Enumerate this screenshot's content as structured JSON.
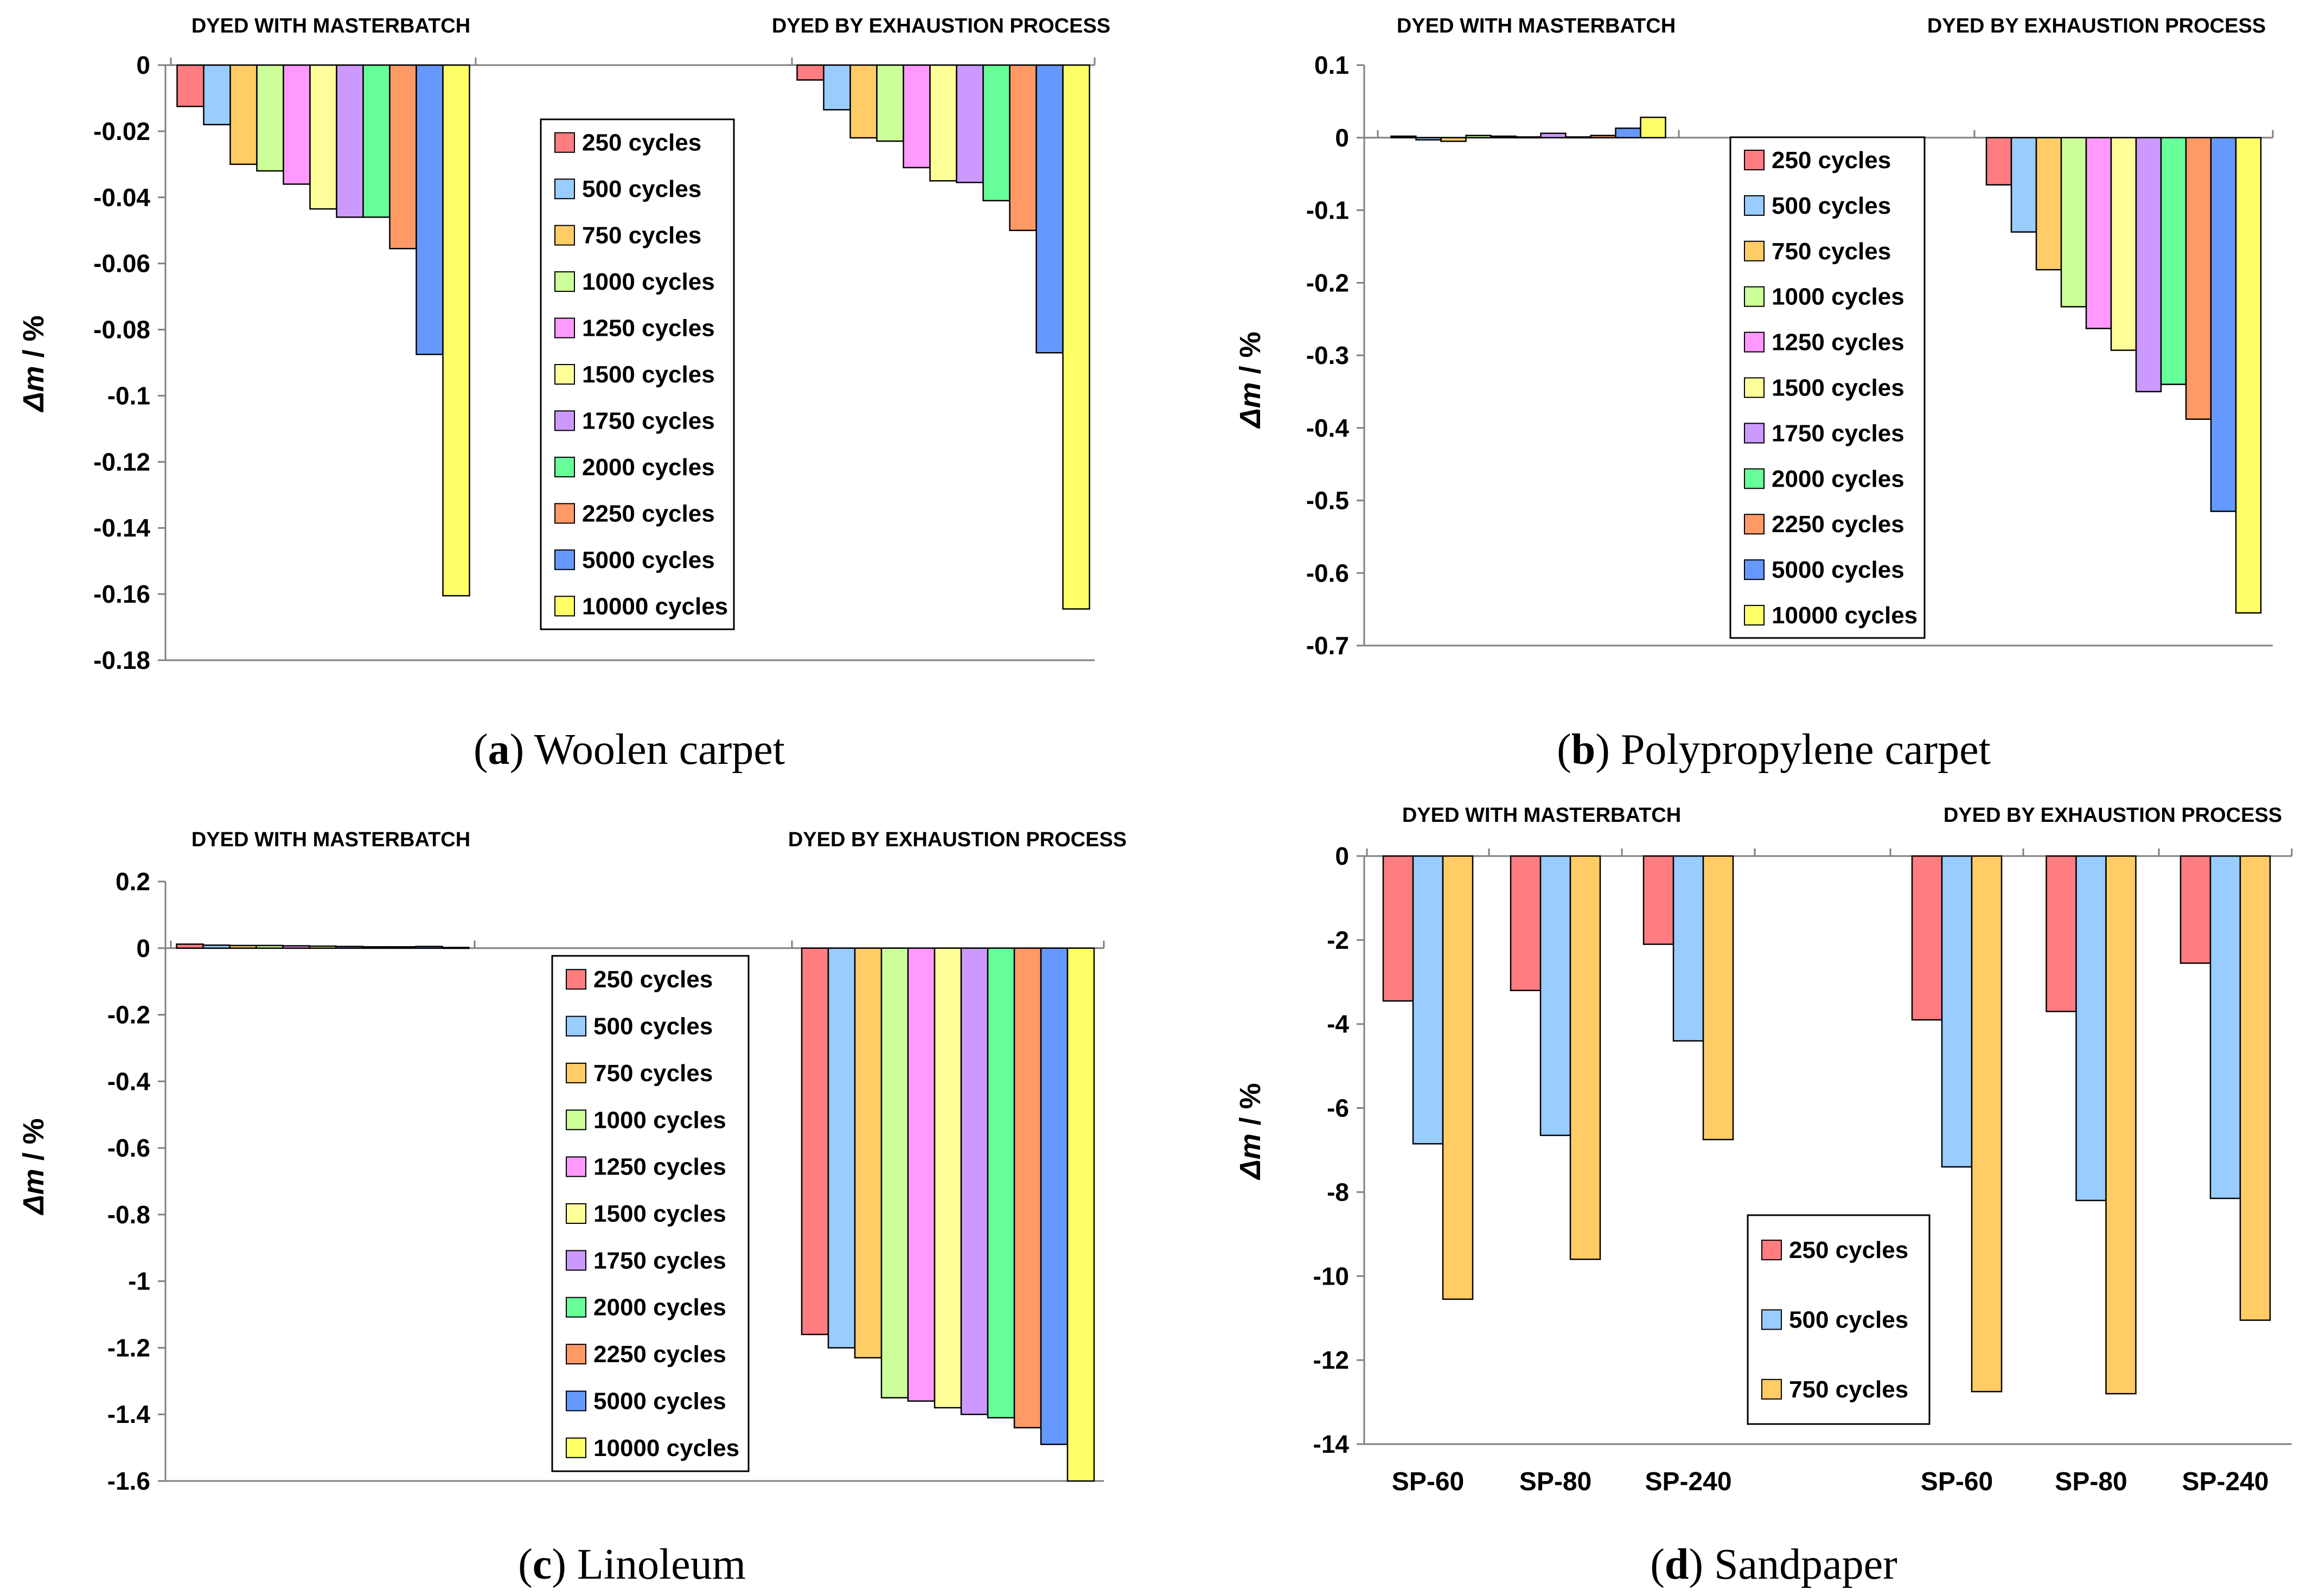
{
  "colors": {
    "series": [
      "#FF7C80",
      "#99CCFF",
      "#FFCC66",
      "#CCFF99",
      "#FF99FF",
      "#FFFF99",
      "#CC99FF",
      "#66FF99",
      "#FF9966",
      "#6699FF",
      "#FFFF66"
    ],
    "axis": "#808080",
    "bar_stroke": "#000000"
  },
  "chart_data": [
    {
      "id": "a",
      "type": "bar",
      "caption_letter": "a",
      "caption_rest": " Woolen carpet",
      "ylabel_italic": "Δm",
      "ylabel_rest": " / %",
      "ylim": [
        -0.18,
        0
      ],
      "yticks": [
        "0",
        "-0.02",
        "-0.04",
        "-0.06",
        "-0.08",
        "-0.1",
        "-0.12",
        "-0.14",
        "-0.16",
        "-0.18"
      ],
      "ytick_values": [
        0,
        -0.02,
        -0.04,
        -0.06,
        -0.08,
        -0.1,
        -0.12,
        -0.14,
        -0.16,
        -0.18
      ],
      "groups": [
        "DYED WITH MASTERBATCH",
        "DYED BY EXHAUSTION PROCESS"
      ],
      "series": [
        {
          "name": "250 cycles",
          "values": [
            -0.0125,
            -0.0045
          ]
        },
        {
          "name": "500 cycles",
          "values": [
            -0.018,
            -0.0135
          ]
        },
        {
          "name": "750 cycles",
          "values": [
            -0.03,
            -0.022
          ]
        },
        {
          "name": "1000 cycles",
          "values": [
            -0.032,
            -0.023
          ]
        },
        {
          "name": "1250 cycles",
          "values": [
            -0.036,
            -0.031
          ]
        },
        {
          "name": "1500 cycles",
          "values": [
            -0.0435,
            -0.035
          ]
        },
        {
          "name": "1750 cycles",
          "values": [
            -0.046,
            -0.0355
          ]
        },
        {
          "name": "2000 cycles",
          "values": [
            -0.046,
            -0.041
          ]
        },
        {
          "name": "2250 cycles",
          "values": [
            -0.0555,
            -0.05
          ]
        },
        {
          "name": "5000 cycles",
          "values": [
            -0.0875,
            -0.087
          ]
        },
        {
          "name": "10000 cycles",
          "values": [
            -0.1605,
            -0.1645
          ]
        }
      ]
    },
    {
      "id": "b",
      "type": "bar",
      "caption_letter": "b",
      "caption_rest": " Polypropylene carpet",
      "ylabel_italic": "Δm",
      "ylabel_rest": " / %",
      "ylim": [
        -0.7,
        0.1
      ],
      "yticks": [
        "0.1",
        "0",
        "-0.1",
        "-0.2",
        "-0.3",
        "-0.4",
        "-0.5",
        "-0.6",
        "-0.7"
      ],
      "ytick_values": [
        0.1,
        0,
        -0.1,
        -0.2,
        -0.3,
        -0.4,
        -0.5,
        -0.6,
        -0.7
      ],
      "groups": [
        "DYED WITH MASTERBATCH",
        "DYED BY EXHAUSTION PROCESS"
      ],
      "series": [
        {
          "name": "250 cycles",
          "values": [
            0.002,
            -0.065
          ]
        },
        {
          "name": "500 cycles",
          "values": [
            -0.003,
            -0.13
          ]
        },
        {
          "name": "750 cycles",
          "values": [
            -0.005,
            -0.182
          ]
        },
        {
          "name": "1000 cycles",
          "values": [
            0.003,
            -0.233
          ]
        },
        {
          "name": "1250 cycles",
          "values": [
            0.002,
            -0.263
          ]
        },
        {
          "name": "1500 cycles",
          "values": [
            0.001,
            -0.293
          ]
        },
        {
          "name": "1750 cycles",
          "values": [
            0.006,
            -0.35
          ]
        },
        {
          "name": "2000 cycles",
          "values": [
            0.001,
            -0.34
          ]
        },
        {
          "name": "2250 cycles",
          "values": [
            0.003,
            -0.388
          ]
        },
        {
          "name": "5000 cycles",
          "values": [
            0.013,
            -0.515
          ]
        },
        {
          "name": "10000 cycles",
          "values": [
            0.028,
            -0.655
          ]
        }
      ]
    },
    {
      "id": "c",
      "type": "bar",
      "caption_letter": "c",
      "caption_rest": " Linoleum",
      "ylabel_italic": "Δm",
      "ylabel_rest": " / %",
      "ylim": [
        -1.6,
        0.2
      ],
      "yticks": [
        "0.2",
        "0",
        "-0.2",
        "-0.4",
        "-0.6",
        "-0.8",
        "-1",
        "-1.2",
        "-1.4",
        "-1.6"
      ],
      "ytick_values": [
        0.2,
        0,
        -0.2,
        -0.4,
        -0.6,
        -0.8,
        -1,
        -1.2,
        -1.4,
        -1.6
      ],
      "groups": [
        "DYED WITH MASTERBATCH",
        "DYED BY EXHAUSTION PROCESS"
      ],
      "series": [
        {
          "name": "250 cycles",
          "values": [
            0.012,
            -1.16
          ]
        },
        {
          "name": "500 cycles",
          "values": [
            0.009,
            -1.2
          ]
        },
        {
          "name": "750 cycles",
          "values": [
            0.008,
            -1.23
          ]
        },
        {
          "name": "1000 cycles",
          "values": [
            0.008,
            -1.35
          ]
        },
        {
          "name": "1250 cycles",
          "values": [
            0.007,
            -1.36
          ]
        },
        {
          "name": "1500 cycles",
          "values": [
            0.006,
            -1.38
          ]
        },
        {
          "name": "1750 cycles",
          "values": [
            0.005,
            -1.4
          ]
        },
        {
          "name": "2000 cycles",
          "values": [
            0.004,
            -1.41
          ]
        },
        {
          "name": "2250 cycles",
          "values": [
            0.004,
            -1.44
          ]
        },
        {
          "name": "5000 cycles",
          "values": [
            0.005,
            -1.49
          ]
        },
        {
          "name": "10000 cycles",
          "values": [
            0.002,
            -1.6
          ]
        }
      ]
    },
    {
      "id": "d",
      "type": "bar",
      "caption_letter": "d",
      "caption_rest": " Sandpaper",
      "ylabel_italic": "Δm",
      "ylabel_rest": " / %",
      "ylim": [
        -14,
        0
      ],
      "yticks": [
        "0",
        "-2",
        "-4",
        "-6",
        "-8",
        "-10",
        "-12",
        "-14"
      ],
      "ytick_values": [
        0,
        -2,
        -4,
        -6,
        -8,
        -10,
        -12,
        -14
      ],
      "groups": [
        "DYED WITH MASTERBATCH",
        "DYED BY EXHAUSTION PROCESS"
      ],
      "categories": [
        "SP-60",
        "SP-80",
        "SP-240",
        "",
        "SP-60",
        "SP-80",
        "SP-240"
      ],
      "series": [
        {
          "name": "250 cycles",
          "values": [
            -3.45,
            -3.2,
            -2.1,
            null,
            -3.9,
            -3.7,
            -2.55
          ]
        },
        {
          "name": "500 cycles",
          "values": [
            -6.85,
            -6.65,
            -4.4,
            null,
            -7.4,
            -8.2,
            -8.15
          ]
        },
        {
          "name": "750 cycles",
          "values": [
            -10.55,
            -9.6,
            -6.75,
            null,
            -12.75,
            -12.8,
            -11.05
          ]
        }
      ]
    }
  ]
}
